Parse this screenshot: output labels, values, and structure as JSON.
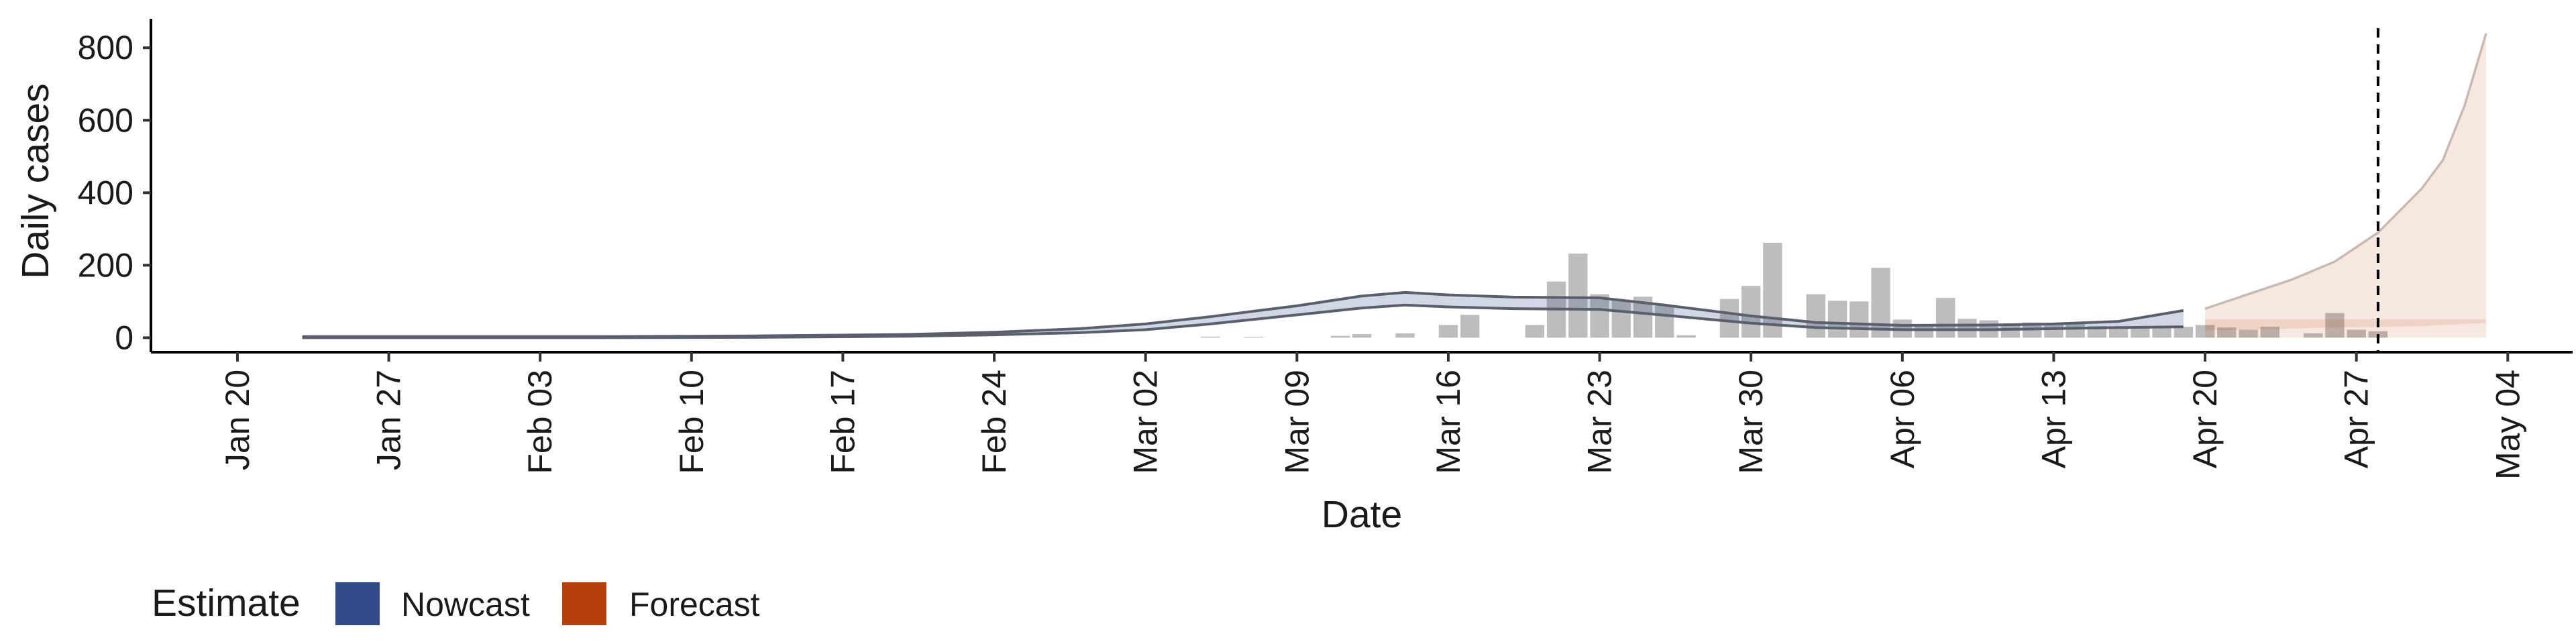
{
  "chart_data": {
    "type": "bar",
    "title": "",
    "xlabel": "Date",
    "ylabel": "Daily cases",
    "ylim": [
      -40,
      880
    ],
    "yticks": [
      0,
      200,
      400,
      600,
      800
    ],
    "xlim": [
      "2020-01-16",
      "2020-05-07"
    ],
    "xticks": [
      {
        "date": "2020-01-20",
        "label": "Jan 20"
      },
      {
        "date": "2020-01-27",
        "label": "Jan 27"
      },
      {
        "date": "2020-02-03",
        "label": "Feb 03"
      },
      {
        "date": "2020-02-10",
        "label": "Feb 10"
      },
      {
        "date": "2020-02-17",
        "label": "Feb 17"
      },
      {
        "date": "2020-02-24",
        "label": "Feb 24"
      },
      {
        "date": "2020-03-02",
        "label": "Mar 02"
      },
      {
        "date": "2020-03-09",
        "label": "Mar 09"
      },
      {
        "date": "2020-03-16",
        "label": "Mar 16"
      },
      {
        "date": "2020-03-23",
        "label": "Mar 23"
      },
      {
        "date": "2020-03-30",
        "label": "Mar 30"
      },
      {
        "date": "2020-04-06",
        "label": "Apr 06"
      },
      {
        "date": "2020-04-13",
        "label": "Apr 13"
      },
      {
        "date": "2020-04-20",
        "label": "Apr 20"
      },
      {
        "date": "2020-04-27",
        "label": "Apr 27"
      },
      {
        "date": "2020-05-04",
        "label": "May 04"
      }
    ],
    "reported_cases": {
      "dates": [
        "2020-03-05",
        "2020-03-07",
        "2020-03-11",
        "2020-03-12",
        "2020-03-14",
        "2020-03-16",
        "2020-03-17",
        "2020-03-20",
        "2020-03-21",
        "2020-03-22",
        "2020-03-23",
        "2020-03-24",
        "2020-03-25",
        "2020-03-26",
        "2020-03-27",
        "2020-03-29",
        "2020-03-30",
        "2020-03-31",
        "2020-04-02",
        "2020-04-03",
        "2020-04-04",
        "2020-04-05",
        "2020-04-06",
        "2020-04-07",
        "2020-04-08",
        "2020-04-09",
        "2020-04-10",
        "2020-04-11",
        "2020-04-12",
        "2020-04-13",
        "2020-04-14",
        "2020-04-15",
        "2020-04-16",
        "2020-04-17",
        "2020-04-18",
        "2020-04-19",
        "2020-04-20",
        "2020-04-21",
        "2020-04-22",
        "2020-04-23",
        "2020-04-25",
        "2020-04-26",
        "2020-04-27",
        "2020-04-28"
      ],
      "values": [
        3,
        2,
        5,
        10,
        12,
        35,
        63,
        35,
        155,
        232,
        120,
        105,
        113,
        90,
        7,
        107,
        143,
        262,
        120,
        102,
        100,
        193,
        50,
        35,
        110,
        52,
        48,
        38,
        42,
        40,
        38,
        32,
        30,
        30,
        28,
        30,
        35,
        28,
        22,
        30,
        12,
        68,
        22,
        18
      ]
    },
    "series": [
      {
        "name": "Nowcast",
        "color": "#344b8a",
        "dates": [
          "2020-01-23",
          "2020-01-30",
          "2020-02-06",
          "2020-02-13",
          "2020-02-20",
          "2020-02-24",
          "2020-02-28",
          "2020-03-02",
          "2020-03-05",
          "2020-03-09",
          "2020-03-12",
          "2020-03-14",
          "2020-03-16",
          "2020-03-19",
          "2020-03-23",
          "2020-03-26",
          "2020-03-30",
          "2020-04-02",
          "2020-04-06",
          "2020-04-10",
          "2020-04-13",
          "2020-04-16",
          "2020-04-19"
        ],
        "lower": [
          0,
          0,
          0,
          1,
          4,
          8,
          14,
          22,
          38,
          63,
          82,
          90,
          85,
          80,
          78,
          62,
          40,
          28,
          22,
          22,
          25,
          28,
          30
        ],
        "upper": [
          3,
          3,
          3,
          5,
          9,
          15,
          25,
          38,
          58,
          88,
          115,
          125,
          118,
          112,
          110,
          90,
          60,
          42,
          34,
          35,
          38,
          45,
          75
        ]
      },
      {
        "name": "Forecast",
        "color": "#b5400c",
        "dates": [
          "2020-04-20",
          "2020-04-22",
          "2020-04-24",
          "2020-04-26",
          "2020-04-28",
          "2020-04-30",
          "2020-05-01",
          "2020-05-02",
          "2020-05-03"
        ],
        "lower": [
          20,
          22,
          25,
          28,
          30,
          32,
          35,
          38,
          40
        ],
        "upper": [
          80,
          120,
          160,
          210,
          290,
          410,
          490,
          640,
          840
        ]
      }
    ],
    "vline_date": "2020-04-28",
    "legend": {
      "title": "Estimate",
      "position": "bottom-left",
      "items": [
        {
          "label": "Nowcast",
          "color": "#344b8a"
        },
        {
          "label": "Forecast",
          "color": "#b5400c"
        }
      ]
    }
  }
}
